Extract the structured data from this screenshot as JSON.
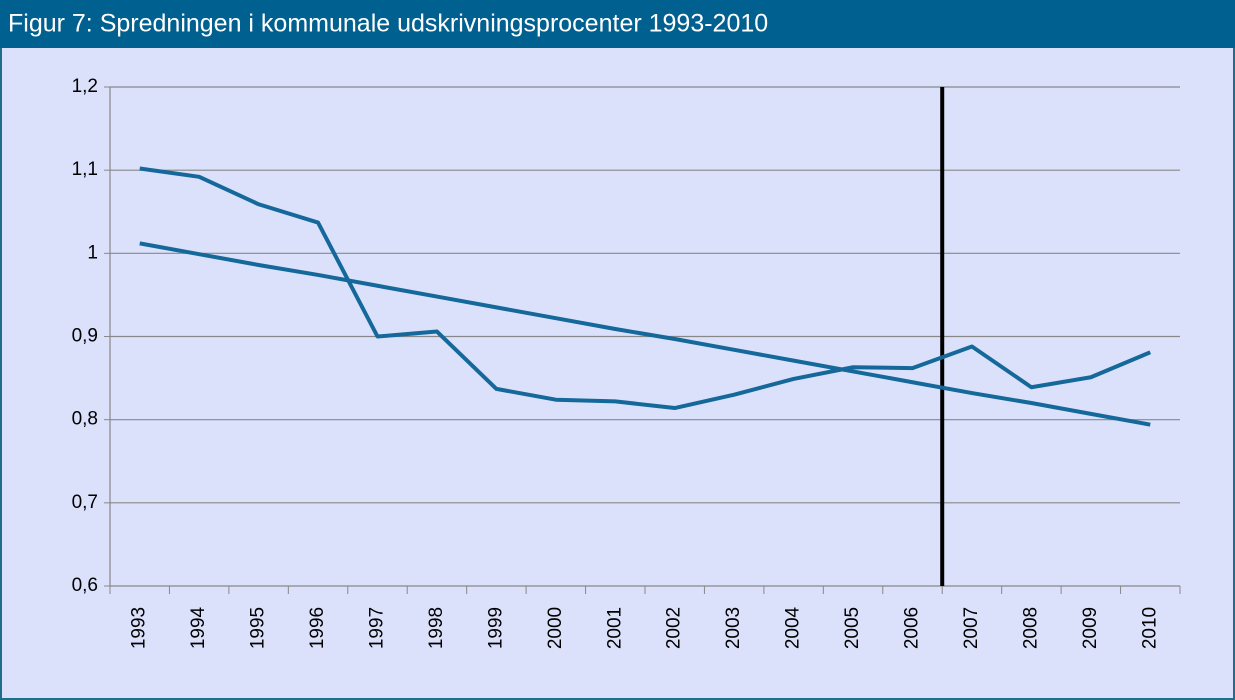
{
  "chart_data": {
    "type": "line",
    "title": "Figur 7: Spredningen i kommunale udskrivningsprocenter 1993-2010",
    "categories": [
      "1993",
      "1994",
      "1995",
      "1996",
      "1997",
      "1998",
      "1999",
      "2000",
      "2001",
      "2002",
      "2003",
      "2004",
      "2005",
      "2006",
      "2007",
      "2008",
      "2009",
      "2010"
    ],
    "series": [
      {
        "color": "#15689a",
        "values": [
          1.102,
          1.092,
          1.059,
          1.037,
          0.9,
          0.906,
          0.837,
          0.824,
          0.822,
          0.814,
          0.83,
          0.849,
          0.863,
          0.862,
          0.888,
          0.839,
          0.851,
          0.881
        ]
      },
      {
        "color": "#15689a",
        "values": [
          1.012,
          0.999,
          0.986,
          0.974,
          0.961,
          0.948,
          0.935,
          0.922,
          0.909,
          0.897,
          0.884,
          0.871,
          0.858,
          0.845,
          0.832,
          0.82,
          0.807,
          0.794
        ]
      }
    ],
    "ylim": [
      0.6,
      1.2
    ],
    "yticks": [
      {
        "value": 0.6,
        "label": "0,6"
      },
      {
        "value": 0.7,
        "label": "0,7"
      },
      {
        "value": 0.8,
        "label": "0,8"
      },
      {
        "value": 0.9,
        "label": "0,9"
      },
      1,
      {
        "value": 1.1,
        "label": "1,1"
      },
      {
        "value": 1.2,
        "label": "1,2"
      }
    ],
    "grid": true,
    "vertical_line": {
      "between": [
        "2006",
        "2007"
      ],
      "color": "#000000"
    }
  }
}
